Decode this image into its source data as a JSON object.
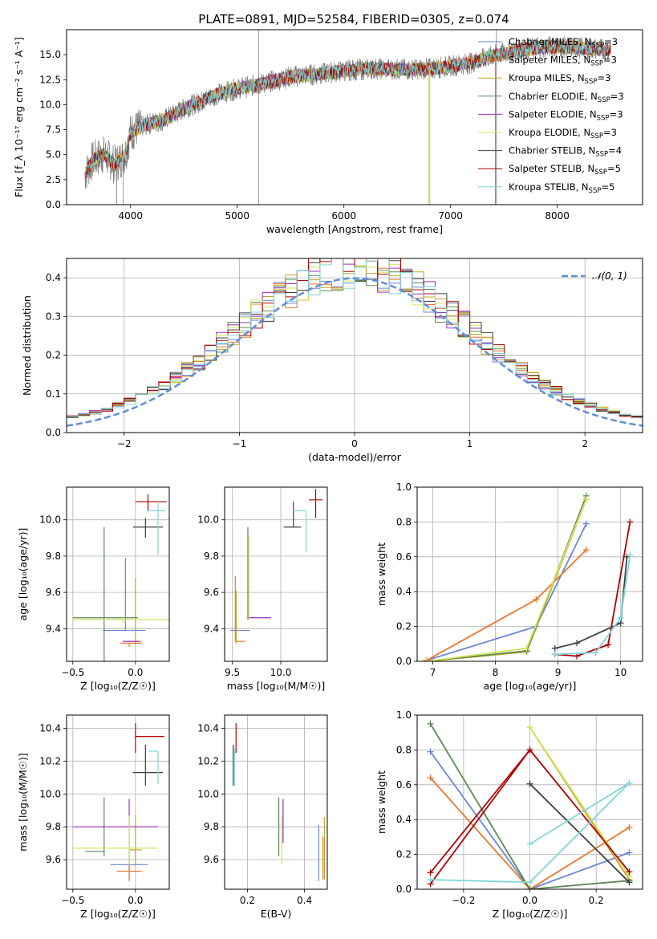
{
  "figure_title": "PLATE=0891, MJD=52584, FIBERID=0305, z=0.074",
  "colors": {
    "Chabrier MILES": "#6a86d6",
    "Salpeter MILES": "#e8772e",
    "Kroupa MILES": "#c8a222",
    "Chabrier ELODIE": "#5b8a56",
    "Salpeter ELODIE": "#9a2fbf",
    "Kroupa ELODIE": "#d4e35a",
    "Chabrier STELIB": "#404040",
    "Salpeter STELIB": "#b00000",
    "Kroupa STELIB": "#7fd6da",
    "data": "#808080",
    "normal": "#5f8fd6"
  },
  "chart_data": [
    {
      "id": "spectrum",
      "type": "line",
      "xlabel": "wavelength [Angstrom, rest frame]",
      "ylabel": "Flux [f_λ 10⁻¹⁷ erg cm⁻² s⁻¹ A⁻¹]",
      "xlim": [
        3400,
        8800
      ],
      "ylim": [
        0,
        17.5
      ],
      "xticks": [
        4000,
        5000,
        6000,
        7000,
        8000
      ],
      "yticks": [
        0.0,
        2.5,
        5.0,
        7.5,
        10.0,
        12.5,
        15.0
      ],
      "grid": false,
      "legend_position": "top-right",
      "legend": [
        {
          "model": "Chabrier MILES",
          "text": "Chabrier MILES, N",
          "sub": "SSP",
          "tail": "=3"
        },
        {
          "model": "Salpeter MILES",
          "text": "Salpeter MILES, N",
          "sub": "SSP",
          "tail": "=3"
        },
        {
          "model": "Kroupa MILES",
          "text": "Kroupa MILES, N",
          "sub": "SSP",
          "tail": "=3"
        },
        {
          "model": "Chabrier ELODIE",
          "text": "Chabrier ELODIE, N",
          "sub": "SSP",
          "tail": "=3"
        },
        {
          "model": "Salpeter ELODIE",
          "text": "Salpeter ELODIE, N",
          "sub": "SSP",
          "tail": "=3"
        },
        {
          "model": "Kroupa ELODIE",
          "text": "Kroupa ELODIE, N",
          "sub": "SSP",
          "tail": "=3"
        },
        {
          "model": "Chabrier STELIB",
          "text": "Chabrier STELIB, N",
          "sub": "SSP",
          "tail": "=4"
        },
        {
          "model": "Salpeter STELIB",
          "text": "Salpeter STELIB, N",
          "sub": "SSP",
          "tail": "=5"
        },
        {
          "model": "Kroupa STELIB",
          "text": "Kroupa STELIB, N",
          "sub": "SSP",
          "tail": "=5"
        }
      ],
      "continuum": {
        "x": [
          3570,
          3650,
          3750,
          3850,
          3950,
          4000,
          4100,
          4200,
          4300,
          4500,
          4800,
          5000,
          5200,
          5500,
          5800,
          6000,
          6300,
          6600,
          6900,
          7200,
          7400,
          7600,
          7900,
          8200,
          8500
        ],
        "y": [
          3.0,
          4.5,
          5.0,
          4.0,
          5.0,
          7.2,
          7.8,
          8.2,
          8.4,
          9.6,
          11.0,
          11.6,
          12.0,
          12.8,
          13.1,
          13.4,
          13.6,
          13.5,
          13.7,
          14.2,
          14.9,
          15.4,
          15.8,
          15.7,
          15.5
        ]
      },
      "data_artifacts": [
        {
          "x": 5200,
          "ymin": 0,
          "ymax": 17.5
        },
        {
          "x": 7430,
          "ymin": 0,
          "ymax": 17.5
        },
        {
          "x": 3870,
          "ymin": 0,
          "ymax": 4.5
        },
        {
          "x": 3930,
          "ymin": 0,
          "ymax": 4.5
        }
      ],
      "model_spikes": [
        {
          "model": "Kroupa MILES",
          "x": 6800,
          "ymin": 0,
          "ymax": 13.5
        },
        {
          "model": "Kroupa ELODIE",
          "x": 6805,
          "ymin": 0,
          "ymax": 13.5
        },
        {
          "model": "Salpeter MILES",
          "x": 7420,
          "ymin": 0,
          "ymax": 15.0
        }
      ]
    },
    {
      "id": "residuals",
      "type": "step",
      "xlabel": "(data-model)/error",
      "ylabel": "Normed distribution",
      "xlim": [
        -2.5,
        2.5
      ],
      "ylim": [
        0,
        0.45
      ],
      "xticks": [
        -2,
        -1,
        0,
        1,
        2
      ],
      "yticks": [
        0.0,
        0.1,
        0.2,
        0.3,
        0.4
      ],
      "grid": true,
      "legend_position": "top-right",
      "legend_label": "𝒩(0, 1)",
      "bin_width": 0.1,
      "bin_start": -2.5,
      "normal": {
        "mean": 0,
        "sigma": 1
      },
      "histogram_models": [
        "Chabrier MILES",
        "Salpeter MILES",
        "Kroupa MILES",
        "Chabrier ELODIE",
        "Salpeter ELODIE",
        "Kroupa ELODIE",
        "Chabrier STELIB",
        "Salpeter STELIB",
        "Kroupa STELIB"
      ]
    },
    {
      "id": "z-age",
      "type": "errorbar",
      "xlabel": "Z [log₁₀(Z/Z☉)]",
      "ylabel": "age  [log₁₀(age/yr)]",
      "xlim": [
        -0.55,
        0.27
      ],
      "ylim": [
        9.22,
        10.18
      ],
      "xticks": [
        -0.5,
        0.0
      ],
      "yticks": [
        9.4,
        9.6,
        9.8,
        10.0
      ],
      "grid": true,
      "points": [
        {
          "model": "Chabrier MILES",
          "x": -0.08,
          "xerr": [
            0.18,
            0.16
          ],
          "y": 9.39,
          "yerr": [
            0.0,
            0.4
          ]
        },
        {
          "model": "Salpeter MILES",
          "x": -0.05,
          "xerr": [
            0.07,
            0.1
          ],
          "y": 9.32,
          "yerr": [
            0.02,
            0.0
          ]
        },
        {
          "model": "Kroupa MILES",
          "x": 0.0,
          "xerr": [
            0.05,
            0.05
          ],
          "y": 9.33,
          "yerr": [
            0.02,
            0.35
          ]
        },
        {
          "model": "Chabrier ELODIE",
          "x": -0.25,
          "xerr": [
            0.25,
            0.27
          ],
          "y": 9.46,
          "yerr": [
            0.36,
            0.5
          ]
        },
        {
          "model": "Salpeter ELODIE",
          "x": -0.05,
          "xerr": [
            0.05,
            0.08
          ],
          "y": 9.33,
          "yerr": [
            0.0,
            0.0
          ]
        },
        {
          "model": "Kroupa ELODIE",
          "x": -0.1,
          "xerr": [
            0.4,
            0.45
          ],
          "y": 9.45,
          "yerr": [
            0.02,
            0.02
          ]
        },
        {
          "model": "Chabrier STELIB",
          "x": 0.08,
          "xerr": [
            0.1,
            0.14
          ],
          "y": 9.96,
          "yerr": [
            0.06,
            0.05
          ]
        },
        {
          "model": "Salpeter STELIB",
          "x": 0.1,
          "xerr": [
            0.1,
            0.15
          ],
          "y": 10.1,
          "yerr": [
            0.05,
            0.04
          ]
        },
        {
          "model": "Kroupa STELIB",
          "x": 0.18,
          "xerr": [
            0.08,
            0.06
          ],
          "y": 10.05,
          "yerr": [
            0.24,
            0.05
          ]
        }
      ]
    },
    {
      "id": "mass-age",
      "type": "errorbar",
      "xlabel": "mass [log₁₀(M/M☉)]",
      "ylabel": "",
      "xlim": [
        9.42,
        10.48
      ],
      "ylim": [
        9.22,
        10.18
      ],
      "xticks": [
        9.5,
        10.0
      ],
      "yticks": [
        9.4,
        9.6,
        9.8,
        10.0
      ],
      "grid": true,
      "points": [
        {
          "model": "Chabrier MILES",
          "x": 9.58,
          "xerr": [
            0.1,
            0.1
          ],
          "y": 9.39,
          "yerr": [
            0.0,
            0.0
          ]
        },
        {
          "model": "Salpeter MILES",
          "x": 9.53,
          "xerr": [
            0.0,
            0.1
          ],
          "y": 9.33,
          "yerr": [
            0.0,
            0.36
          ]
        },
        {
          "model": "Kroupa MILES",
          "x": 9.54,
          "xerr": [
            0.0,
            0.0
          ],
          "y": 9.35,
          "yerr": [
            0.03,
            0.26
          ]
        },
        {
          "model": "Chabrier ELODIE",
          "x": 9.66,
          "xerr": [
            0.0,
            0.0
          ],
          "y": 9.45,
          "yerr": [
            0.0,
            0.51
          ]
        },
        {
          "model": "Salpeter ELODIE",
          "x": 9.8,
          "xerr": [
            0.14,
            0.1
          ],
          "y": 9.46,
          "yerr": [
            0.0,
            0.0
          ]
        },
        {
          "model": "Kroupa ELODIE",
          "x": 9.67,
          "xerr": [
            0.0,
            0.0
          ],
          "y": 9.45,
          "yerr": [
            0.0,
            0.46
          ]
        },
        {
          "model": "Chabrier STELIB",
          "x": 10.13,
          "xerr": [
            0.1,
            0.08
          ],
          "y": 9.96,
          "yerr": [
            0.0,
            0.14
          ]
        },
        {
          "model": "Salpeter STELIB",
          "x": 10.36,
          "xerr": [
            0.07,
            0.07
          ],
          "y": 10.11,
          "yerr": [
            0.1,
            0.06
          ]
        },
        {
          "model": "Kroupa STELIB",
          "x": 10.26,
          "xerr": [
            0.13,
            0.0
          ],
          "y": 10.05,
          "yerr": [
            0.23,
            0.0
          ]
        }
      ]
    },
    {
      "id": "age-massweight",
      "type": "line",
      "xlabel": "age  [log₁₀(age/yr)]",
      "ylabel": "mass weight",
      "xlim": [
        6.75,
        10.35
      ],
      "ylim": [
        0,
        1.0
      ],
      "xticks": [
        7,
        8,
        9,
        10
      ],
      "yticks": [
        0.0,
        0.2,
        0.4,
        0.6,
        0.8,
        1.0
      ],
      "grid": true,
      "series": [
        {
          "model": "Chabrier MILES",
          "x": [
            6.9,
            8.65,
            9.45
          ],
          "y": [
            0.005,
            0.2,
            0.79
          ]
        },
        {
          "model": "Salpeter MILES",
          "x": [
            6.9,
            8.65,
            9.45
          ],
          "y": [
            0.005,
            0.355,
            0.64
          ]
        },
        {
          "model": "Kroupa MILES",
          "x": [
            6.9,
            8.5,
            9.45
          ],
          "y": [
            0.0,
            0.055,
            0.93
          ]
        },
        {
          "model": "Chabrier ELODIE",
          "x": [
            6.9,
            8.5,
            9.45
          ],
          "y": [
            0.0,
            0.06,
            0.95
          ]
        },
        {
          "model": "Kroupa ELODIE",
          "x": [
            6.9,
            8.5,
            9.45
          ],
          "y": [
            0.0,
            0.075,
            0.93
          ]
        },
        {
          "model": "Salpeter STELIB",
          "x": [
            8.95,
            9.3,
            9.8,
            10.15
          ],
          "y": [
            0.04,
            0.03,
            0.095,
            0.8
          ]
        },
        {
          "model": "Chabrier STELIB",
          "x": [
            8.95,
            9.3,
            10.0,
            10.1
          ],
          "y": [
            0.075,
            0.105,
            0.22,
            0.6
          ]
        },
        {
          "model": "Kroupa STELIB",
          "x": [
            8.95,
            9.6,
            10.0,
            10.15
          ],
          "y": [
            0.04,
            0.05,
            0.25,
            0.61
          ]
        }
      ]
    },
    {
      "id": "z-mass",
      "type": "errorbar",
      "xlabel": "Z [log₁₀(Z/Z☉)]",
      "ylabel": "mass [log₁₀(M/M☉)]",
      "xlim": [
        -0.55,
        0.27
      ],
      "ylim": [
        9.42,
        10.48
      ],
      "xticks": [
        -0.5,
        0.0
      ],
      "yticks": [
        9.6,
        9.8,
        10.0,
        10.2,
        10.4
      ],
      "grid": true,
      "points": [
        {
          "model": "Chabrier MILES",
          "x": -0.05,
          "xerr": [
            0.15,
            0.15
          ],
          "y": 9.57,
          "yerr": [
            0.1,
            0.24
          ]
        },
        {
          "model": "Salpeter MILES",
          "x": -0.05,
          "xerr": [
            0.1,
            0.1
          ],
          "y": 9.53,
          "yerr": [
            0.05,
            0.1
          ]
        },
        {
          "model": "Kroupa MILES",
          "x": 0.0,
          "xerr": [
            0.05,
            0.05
          ],
          "y": 9.66,
          "yerr": [
            0.1,
            0.21
          ]
        },
        {
          "model": "Chabrier ELODIE",
          "x": -0.25,
          "xerr": [
            0.15,
            0.0
          ],
          "y": 9.65,
          "yerr": [
            0.03,
            0.33
          ]
        },
        {
          "model": "Salpeter ELODIE",
          "x": -0.05,
          "xerr": [
            0.45,
            0.23
          ],
          "y": 9.8,
          "yerr": [
            0.0,
            0.17
          ]
        },
        {
          "model": "Kroupa ELODIE",
          "x": -0.05,
          "xerr": [
            0.45,
            0.23
          ],
          "y": 9.67,
          "yerr": [
            0.1,
            0.2
          ]
        },
        {
          "model": "Chabrier STELIB",
          "x": 0.08,
          "xerr": [
            0.1,
            0.14
          ],
          "y": 10.13,
          "yerr": [
            0.08,
            0.17
          ]
        },
        {
          "model": "Salpeter STELIB",
          "x": 0.0,
          "xerr": [
            0.0,
            0.23
          ],
          "y": 10.35,
          "yerr": [
            0.1,
            0.08
          ]
        },
        {
          "model": "Kroupa STELIB",
          "x": 0.18,
          "xerr": [
            0.08,
            0.0
          ],
          "y": 10.26,
          "yerr": [
            0.2,
            0.0
          ]
        }
      ]
    },
    {
      "id": "ebv-mass",
      "type": "errorbar",
      "xlabel": "E(B-V)",
      "ylabel": "",
      "xlim": [
        0.12,
        0.48
      ],
      "ylim": [
        9.42,
        10.48
      ],
      "xticks": [
        0.2,
        0.4
      ],
      "yticks": [
        9.6,
        9.8,
        10.0,
        10.2,
        10.4
      ],
      "grid": true,
      "points": [
        {
          "model": "Chabrier MILES",
          "x": 0.45,
          "xerr": [
            0.0,
            0.0
          ],
          "y": 9.57,
          "yerr": [
            0.1,
            0.24
          ]
        },
        {
          "model": "Salpeter MILES",
          "x": 0.465,
          "xerr": [
            0.0,
            0.0
          ],
          "y": 9.53,
          "yerr": [
            0.05,
            0.21
          ]
        },
        {
          "model": "Kroupa MILES",
          "x": 0.47,
          "xerr": [
            0.0,
            0.0
          ],
          "y": 9.68,
          "yerr": [
            0.2,
            0.18
          ]
        },
        {
          "model": "Chabrier ELODIE",
          "x": 0.31,
          "xerr": [
            0.0,
            0.0
          ],
          "y": 9.65,
          "yerr": [
            0.03,
            0.33
          ]
        },
        {
          "model": "Salpeter ELODIE",
          "x": 0.325,
          "xerr": [
            0.0,
            0.0
          ],
          "y": 9.8,
          "yerr": [
            0.1,
            0.17
          ]
        },
        {
          "model": "Kroupa ELODIE",
          "x": 0.32,
          "xerr": [
            0.0,
            0.0
          ],
          "y": 9.67,
          "yerr": [
            0.1,
            0.2
          ]
        },
        {
          "model": "Chabrier STELIB",
          "x": 0.15,
          "xerr": [
            0.0,
            0.0
          ],
          "y": 10.15,
          "yerr": [
            0.1,
            0.15
          ]
        },
        {
          "model": "Salpeter STELIB",
          "x": 0.16,
          "xerr": [
            0.0,
            0.0
          ],
          "y": 10.35,
          "yerr": [
            0.1,
            0.08
          ]
        },
        {
          "model": "Kroupa STELIB",
          "x": 0.155,
          "xerr": [
            0.0,
            0.0
          ],
          "y": 10.2,
          "yerr": [
            0.15,
            0.08
          ]
        }
      ]
    },
    {
      "id": "z-massweight",
      "type": "line",
      "xlabel": "Z [log₁₀(Z/Z☉)]",
      "ylabel": "mass weight",
      "xlim": [
        -0.34,
        0.34
      ],
      "ylim": [
        0,
        1.0
      ],
      "xticks": [
        -0.2,
        0.0,
        0.2
      ],
      "yticks": [
        0.0,
        0.2,
        0.4,
        0.6,
        0.8,
        1.0
      ],
      "grid": true,
      "series": [
        {
          "model": "Chabrier MILES",
          "x": [
            -0.3,
            0.0,
            0.3
          ],
          "y": [
            0.79,
            0.0,
            0.21
          ]
        },
        {
          "model": "Salpeter MILES",
          "x": [
            -0.3,
            0.0,
            0.3
          ],
          "y": [
            0.64,
            0.0,
            0.355
          ]
        },
        {
          "model": "Kroupa MILES",
          "x": [
            0.0,
            0.3
          ],
          "y": [
            0.93,
            0.055
          ]
        },
        {
          "model": "Chabrier ELODIE",
          "x": [
            -0.3,
            0.0,
            0.3
          ],
          "y": [
            0.95,
            0.0,
            0.05
          ]
        },
        {
          "model": "Kroupa ELODIE",
          "x": [
            0.0,
            0.3
          ],
          "y": [
            0.93,
            0.075
          ]
        },
        {
          "model": "Salpeter STELIB",
          "x": [
            -0.3,
            0.0,
            0.3
          ],
          "y": [
            0.03,
            0.8,
            0.1
          ]
        },
        {
          "model": "Salpeter STELIB",
          "x": [
            -0.3,
            0.0
          ],
          "y": [
            0.095,
            0.8
          ]
        },
        {
          "model": "Chabrier STELIB",
          "x": [
            0.0,
            0.3
          ],
          "y": [
            0.605,
            0.04
          ]
        },
        {
          "model": "Kroupa STELIB",
          "x": [
            -0.3,
            0.0,
            0.3
          ],
          "y": [
            0.055,
            0.04,
            0.61
          ]
        },
        {
          "model": "Kroupa STELIB",
          "x": [
            0.0,
            0.3
          ],
          "y": [
            0.26,
            0.61
          ]
        }
      ]
    }
  ]
}
